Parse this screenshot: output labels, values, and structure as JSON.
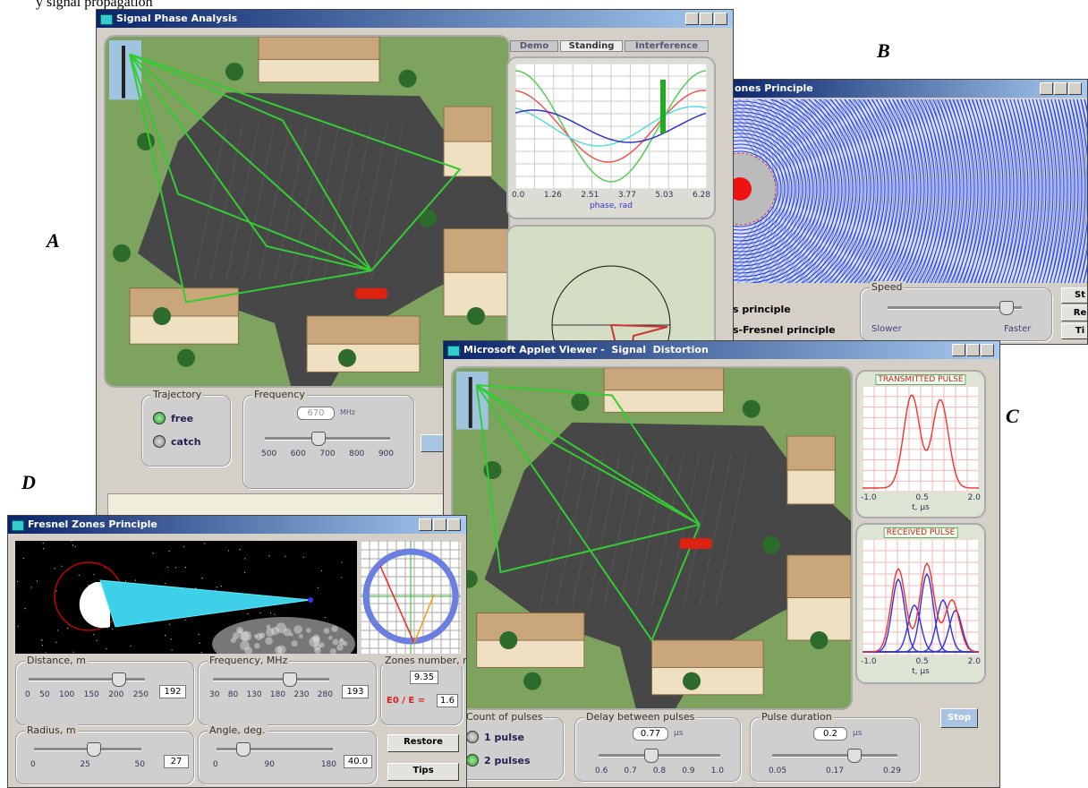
{
  "caption": "y signal propagation",
  "figure_labels": [
    "A",
    "B",
    "C",
    "D"
  ],
  "window_a": {
    "title": "Signal Phase Analysis",
    "tabs": [
      "Demo",
      "Standing",
      "Interference"
    ],
    "phase_ticks": [
      "0.0",
      "1.26",
      "2.51",
      "3.77",
      "5.03",
      "6.28"
    ],
    "phase_axis": "phase, rad",
    "trajectory": {
      "title": "Trajectory",
      "options": [
        "free",
        "catch"
      ]
    },
    "frequency": {
      "title": "Frequency",
      "value": "670",
      "unit": "MHz",
      "ticks": [
        "500",
        "600",
        "700",
        "800",
        "900"
      ]
    }
  },
  "window_b": {
    "title": "ones Principle",
    "options": [
      "s principle",
      "s-Fresnel principle"
    ],
    "speed": {
      "title": "Speed",
      "min_label": "Slower",
      "max_label": "Faster"
    },
    "buttons": [
      "St",
      "Re",
      "Ti"
    ]
  },
  "window_c": {
    "title": "Microsoft Applet Viewer -  Signal  Distortion",
    "transmitted": {
      "title": "TRANSMITTED PULSE",
      "ticks": [
        "-1.0",
        "0.5",
        "2.0"
      ],
      "axis": "t, μs"
    },
    "received": {
      "title": "RECEIVED PULSE",
      "ticks": [
        "-1.0",
        "0.5",
        "2.0"
      ],
      "axis": "t, μs"
    },
    "count": {
      "title": "Count of pulses",
      "options": [
        "1 pulse",
        "2 pulses"
      ]
    },
    "delay": {
      "title": "Delay between pulses",
      "value": "0.77",
      "unit": "μs",
      "ticks": [
        "0.6",
        "0.7",
        "0.8",
        "0.9",
        "1.0"
      ]
    },
    "duration": {
      "title": "Pulse duration",
      "value": "0.2",
      "unit": "μs",
      "ticks": [
        "0.05",
        "0.17",
        "0.29"
      ]
    },
    "button": "Stop"
  },
  "window_d": {
    "title": "Fresnel Zones Principle",
    "distance": {
      "title": "Distance, m",
      "ticks": [
        "0",
        "50",
        "100",
        "150",
        "200",
        "250"
      ],
      "value": "192"
    },
    "frequency": {
      "title": "Frequency, MHz",
      "ticks": [
        "30",
        "80",
        "130",
        "180",
        "230",
        "280"
      ],
      "value": "193"
    },
    "zones": {
      "title": "Zones number, n",
      "value": "9.35",
      "ratio_label": "E0 / E =",
      "ratio": "1.6"
    },
    "radius": {
      "title": "Radius, m",
      "ticks": [
        "0",
        "25",
        "50"
      ],
      "value": "27"
    },
    "angle": {
      "title": "Angle, deg.",
      "ticks": [
        "0",
        "90",
        "180"
      ],
      "value": "40.0"
    },
    "buttons": [
      "Restore",
      "Tips"
    ]
  }
}
